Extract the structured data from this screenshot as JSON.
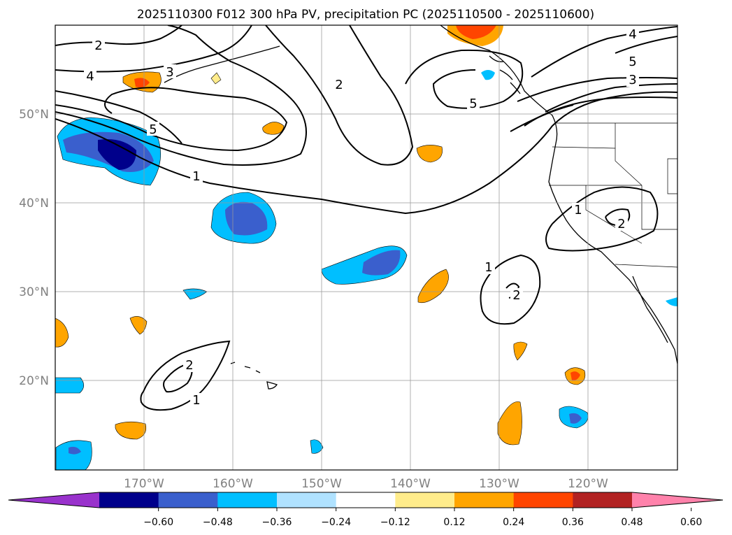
{
  "title": "2025110300 F012 300 hPa PV, precipitation PC (2025110500 - 2025110600)",
  "map": {
    "lon_range": [
      -180,
      -110
    ],
    "lat_range": [
      10,
      60
    ],
    "lat_labels": [
      "50°N",
      "40°N",
      "30°N",
      "20°N"
    ],
    "lon_labels": [
      "170°W",
      "160°W",
      "150°W",
      "140°W",
      "130°W",
      "120°W"
    ]
  },
  "contour_labels": [
    "2",
    "4",
    "3",
    "5",
    "4",
    "5",
    "3",
    "2",
    "5",
    "1",
    "1",
    "2",
    "1",
    "2",
    "2",
    "1"
  ],
  "colorbar": {
    "ticks": [
      "−0.60",
      "−0.48",
      "−0.36",
      "−0.24",
      "−0.12",
      "0.12",
      "0.24",
      "0.36",
      "0.48",
      "0.60"
    ],
    "colors": [
      "#9932cc",
      "#00008b",
      "#3a5fcd",
      "#00bfff",
      "#b0e2ff",
      "#ffffff",
      "#ffec8b",
      "#ffa500",
      "#ff4500",
      "#b22222",
      "#ff82ab"
    ]
  },
  "palette": {
    "frame": "#000000",
    "grid": "#999999",
    "label": "#808080"
  }
}
